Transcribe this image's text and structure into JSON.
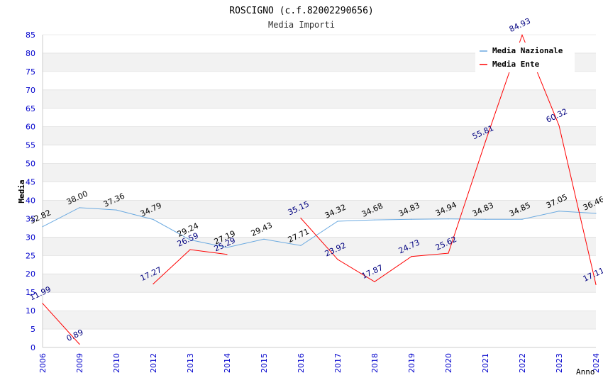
{
  "chart_data": {
    "type": "line",
    "title": "ROSCIGNO (c.f.82002290656)",
    "subtitle": "Media Importi",
    "xlabel": "Anno",
    "ylabel": "Media",
    "ylim": [
      0,
      85
    ],
    "ytick_step": 5,
    "categories": [
      "2006",
      "2009",
      "2010",
      "2012",
      "2013",
      "2014",
      "2015",
      "2016",
      "2017",
      "2018",
      "2019",
      "2020",
      "2021",
      "2022",
      "2023",
      "2024"
    ],
    "grid": true,
    "legend_position": "top-right",
    "series": [
      {
        "name": "Media Nazionale",
        "color": "#6aa9e0",
        "label_color": "#000000",
        "values": [
          32.82,
          38.0,
          37.36,
          34.79,
          29.24,
          27.19,
          29.43,
          27.71,
          34.32,
          34.68,
          34.83,
          34.94,
          34.83,
          34.85,
          37.05,
          36.46
        ],
        "labels": [
          "32.82",
          "38.00",
          "37.36",
          "34.79",
          "29.24",
          "27.19",
          "29.43",
          "27.71",
          "34.32",
          "34.68",
          "34.83",
          "34.94",
          "34.83",
          "34.85",
          "37.05",
          "36.46"
        ]
      },
      {
        "name": "Media Ente",
        "color": "#ff0000",
        "label_color": "#000080",
        "values": [
          11.99,
          0.89,
          null,
          17.27,
          26.59,
          25.29,
          null,
          35.15,
          23.92,
          17.87,
          24.73,
          25.62,
          55.81,
          84.93,
          60.32,
          17.11
        ],
        "labels": [
          "11.99",
          "0.89",
          null,
          "17.27",
          "26.59",
          "25.29",
          null,
          "35.15",
          "23.92",
          "17.87",
          "24.73",
          "25.62",
          "55.81",
          "84.93",
          "60.32",
          "17.11"
        ]
      }
    ],
    "colors": {
      "axis_text": "#0000cc",
      "grid_band": "#f2f2f2",
      "grid_line": "#d9d9d9",
      "title": "#000000",
      "subtitle": "#333333"
    }
  }
}
